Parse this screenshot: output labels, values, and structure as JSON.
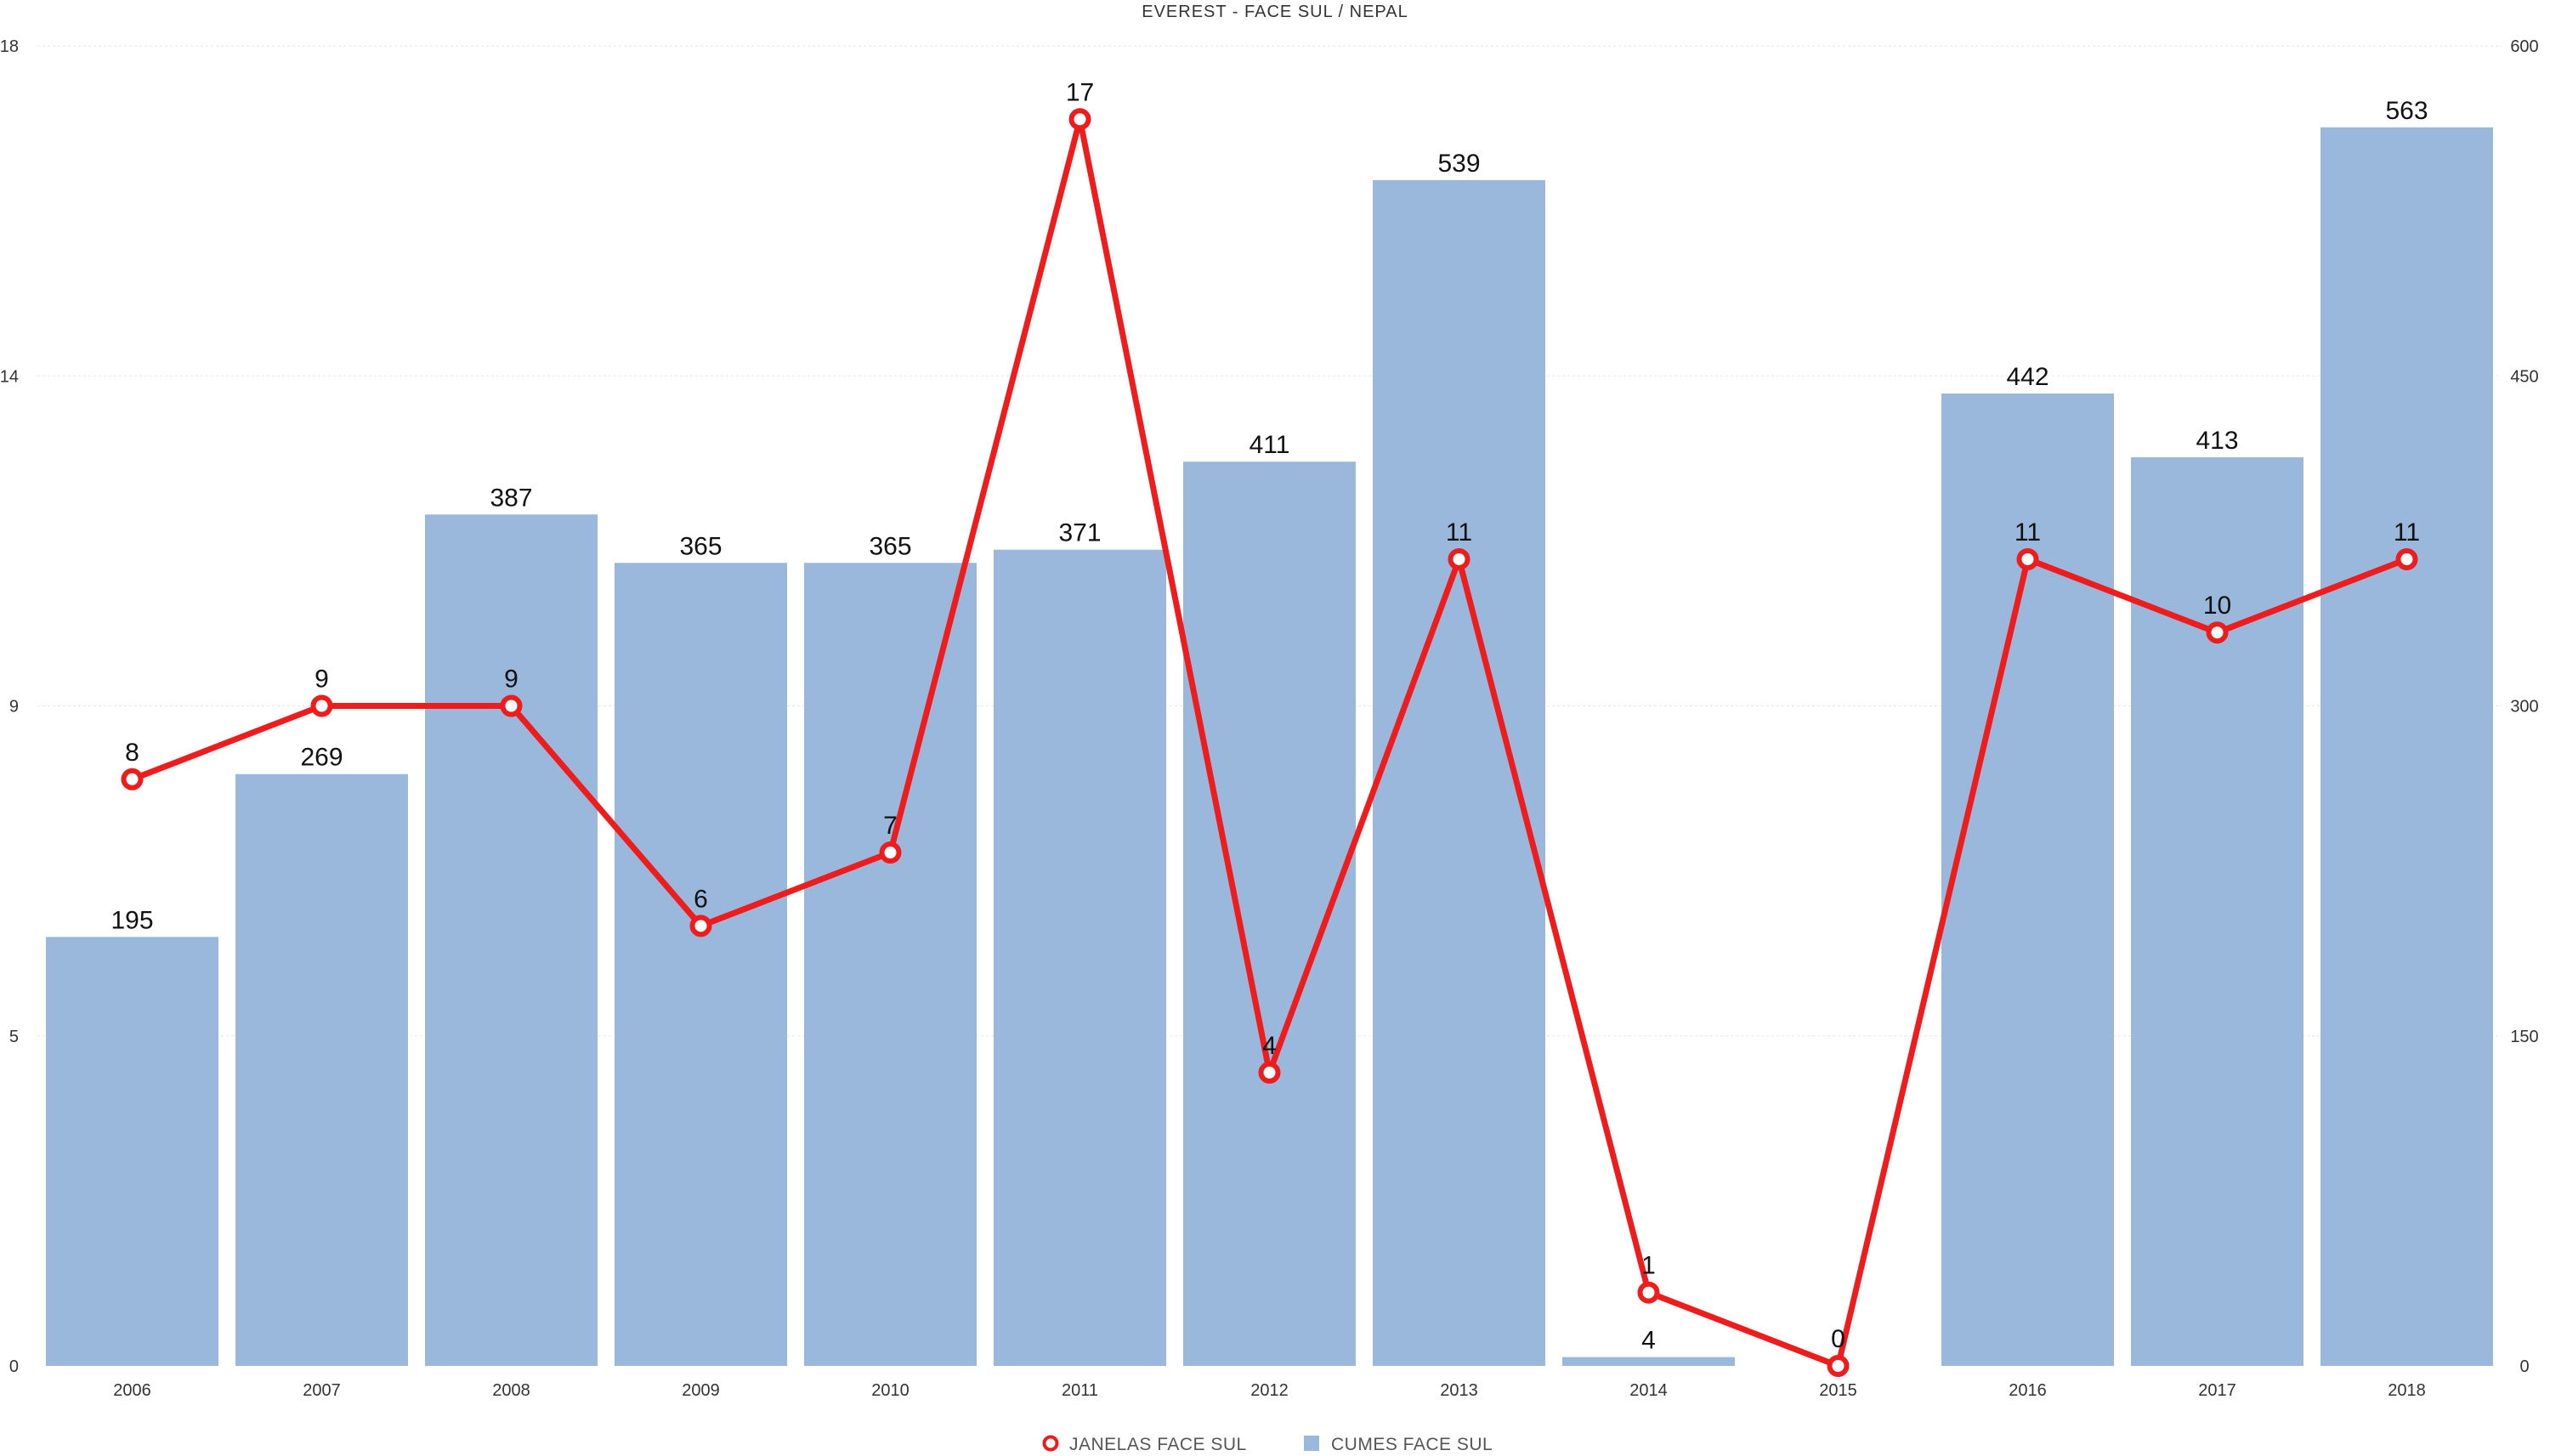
{
  "chart_data": {
    "type": "bar",
    "title": "EVEREST - FACE SUL / NEPAL",
    "categories": [
      "2006",
      "2007",
      "2008",
      "2009",
      "2010",
      "2011",
      "2012",
      "2013",
      "2014",
      "2015",
      "2016",
      "2017",
      "2018"
    ],
    "series": [
      {
        "name": "CUMES FACE SUL",
        "type": "bar",
        "axis": "right",
        "color": "#99b8db",
        "values": [
          195,
          269,
          387,
          365,
          365,
          371,
          411,
          539,
          4,
          0,
          442,
          413,
          563
        ],
        "labels": [
          "195",
          "269",
          "387",
          "365",
          "365",
          "371",
          "411",
          "539",
          "4",
          "",
          "442",
          "413",
          "563"
        ]
      },
      {
        "name": "JANELAS FACE SUL",
        "type": "line",
        "axis": "left",
        "color": "#ee1c1c",
        "values": [
          8,
          9,
          9,
          6,
          7,
          17,
          4,
          11,
          1,
          0,
          11,
          10,
          11
        ],
        "labels": [
          "8",
          "9",
          "9",
          "6",
          "7",
          "17",
          "4",
          "11",
          "1",
          "0",
          "11",
          "10",
          "11"
        ]
      }
    ],
    "y_left": {
      "ylim": [
        0,
        18
      ],
      "ticks": [
        0,
        5,
        9,
        14,
        18
      ]
    },
    "y_right": {
      "ylim": [
        0,
        600
      ],
      "ticks": [
        0,
        150,
        300,
        450,
        600
      ]
    },
    "grid": true,
    "legend": "bottom-center"
  }
}
